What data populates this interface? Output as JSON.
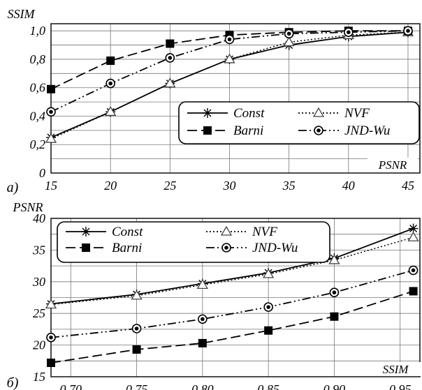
{
  "chart_data": [
    {
      "type": "line",
      "panel_label": "а)",
      "title": "",
      "xlabel": "PSNR",
      "ylabel": "SSIM",
      "xlim": [
        15,
        46
      ],
      "ylim": [
        0,
        1.05
      ],
      "x_ticks": [
        "15",
        "20",
        "25",
        "30",
        "35",
        "40",
        "45"
      ],
      "y_ticks": [
        "0",
        "0,2",
        "0,4",
        "0,6",
        "0,8",
        "1,0"
      ],
      "grid": true,
      "legend_position": "lower-right",
      "x": [
        15,
        20,
        25,
        30,
        35,
        40,
        45
      ],
      "series": [
        {
          "name": "Const",
          "marker": "star",
          "dash": "solid",
          "values": [
            0.25,
            0.43,
            0.63,
            0.8,
            0.9,
            0.96,
            0.99
          ]
        },
        {
          "name": "NVF",
          "marker": "triangle",
          "dash": "dotted",
          "values": [
            0.24,
            0.43,
            0.63,
            0.8,
            0.92,
            0.97,
            0.99
          ]
        },
        {
          "name": "Barni",
          "marker": "square",
          "dash": "dashed",
          "values": [
            0.59,
            0.79,
            0.91,
            0.97,
            0.99,
            1.0,
            1.0
          ]
        },
        {
          "name": "JND-Wu",
          "marker": "circle-dot",
          "dash": "dashdotdot",
          "values": [
            0.43,
            0.63,
            0.81,
            0.94,
            0.98,
            0.99,
            1.0
          ]
        }
      ]
    },
    {
      "type": "line",
      "panel_label": "б)",
      "title": "",
      "xlabel": "SSIM",
      "ylabel": "PSNR",
      "xlim": [
        0.685,
        0.965
      ],
      "ylim": [
        15,
        40
      ],
      "x_ticks": [
        "0,70",
        "0,75",
        "0,80",
        "0,85",
        "0,90",
        "0,95"
      ],
      "y_ticks": [
        "15",
        "20",
        "25",
        "30",
        "35",
        "40"
      ],
      "grid": true,
      "legend_position": "top-left",
      "x": [
        0.685,
        0.75,
        0.8,
        0.85,
        0.9,
        0.96
      ],
      "series": [
        {
          "name": "Const",
          "marker": "star",
          "dash": "solid",
          "values": [
            26.5,
            28.0,
            29.7,
            31.4,
            33.7,
            38.4
          ]
        },
        {
          "name": "NVF",
          "marker": "triangle",
          "dash": "dotted",
          "values": [
            26.4,
            27.8,
            29.5,
            31.2,
            33.4,
            37.0
          ]
        },
        {
          "name": "Barni",
          "marker": "square",
          "dash": "dashed",
          "values": [
            17.2,
            19.3,
            20.3,
            22.3,
            24.5,
            28.5
          ]
        },
        {
          "name": "JND-Wu",
          "marker": "circle-dot",
          "dash": "dashdotdot",
          "values": [
            21.2,
            22.6,
            24.1,
            26.0,
            28.3,
            31.8
          ]
        }
      ]
    }
  ]
}
